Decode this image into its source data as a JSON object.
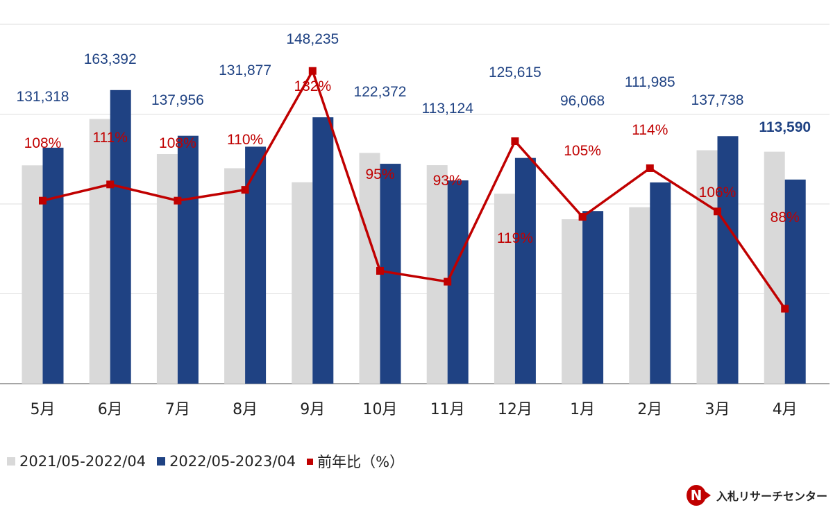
{
  "chart_data": {
    "type": "bar",
    "categories": [
      "5月",
      "6月",
      "7月",
      "8月",
      "9月",
      "10月",
      "11月",
      "12月",
      "1月",
      "2月",
      "3月",
      "4月"
    ],
    "series": [
      {
        "name": "2021/05-2022/04",
        "kind": "bar",
        "color": "#d9d9d9",
        "values": [
          121500,
          147300,
          127800,
          119900,
          112100,
          128400,
          121600,
          105700,
          91500,
          98200,
          129900,
          129100
        ]
      },
      {
        "name": "2022/05-2023/04",
        "kind": "bar",
        "color": "#1f4283",
        "values": [
          131318,
          163392,
          137956,
          131877,
          148235,
          122372,
          113124,
          125615,
          96068,
          111985,
          137738,
          113590
        ],
        "labels": [
          "131,318",
          "163,392",
          "137,956",
          "131,877",
          "148,235",
          "122,372",
          "113,124",
          "125,615",
          "96,068",
          "111,985",
          "137,738",
          "113,590"
        ]
      },
      {
        "name": "前年比（%）",
        "kind": "line",
        "color": "#c00000",
        "values": [
          108,
          111,
          108,
          110,
          132,
          95,
          93,
          119,
          105,
          114,
          106,
          88
        ],
        "labels": [
          "108%",
          "111%",
          "108%",
          "110%",
          "132%",
          "95%",
          "93%",
          "119%",
          "105%",
          "114%",
          "106%",
          "88%"
        ]
      }
    ],
    "ylim": [
      0,
      200000
    ],
    "grid": true,
    "legend_position": "bottom-left"
  },
  "brand": {
    "name": "入札リサーチセンター",
    "logo_letter": "N"
  }
}
